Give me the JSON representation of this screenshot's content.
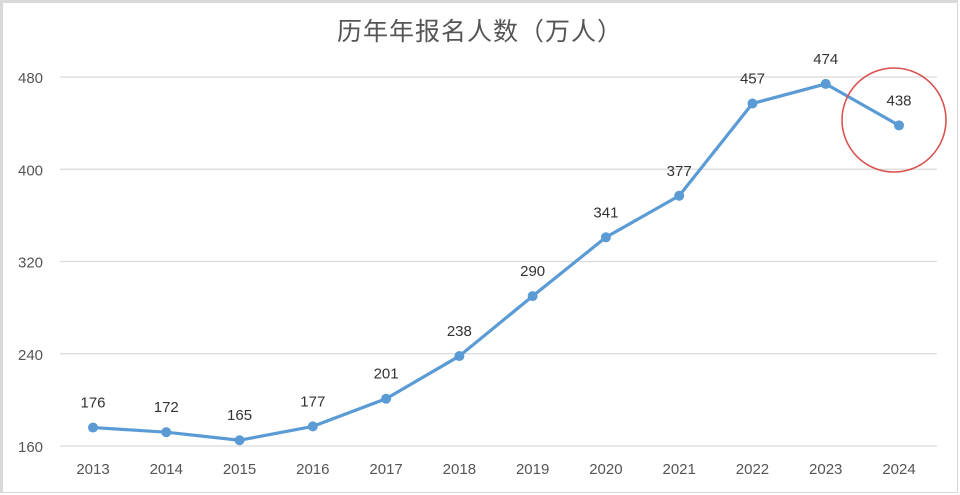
{
  "chart_data": {
    "type": "line",
    "title": "历年年报名人数（万人）",
    "xlabel": "",
    "ylabel": "",
    "categories": [
      "2013",
      "2014",
      "2015",
      "2016",
      "2017",
      "2018",
      "2019",
      "2020",
      "2021",
      "2022",
      "2023",
      "2024"
    ],
    "values": [
      176,
      172,
      165,
      177,
      201,
      238,
      290,
      341,
      377,
      457,
      474,
      438
    ],
    "ylim": [
      160,
      480
    ],
    "yticks": [
      160,
      240,
      320,
      400,
      480
    ],
    "grid": true,
    "legend": null,
    "data_labels": true,
    "annotations": [
      {
        "type": "circle",
        "target": "2024",
        "color": "#d9534f"
      }
    ],
    "colors": {
      "line": "#5b9bd5",
      "grid": "#d9d9d9",
      "highlight": "#d9534f"
    }
  },
  "header": {
    "title": "历年年报名人数（万人）"
  }
}
